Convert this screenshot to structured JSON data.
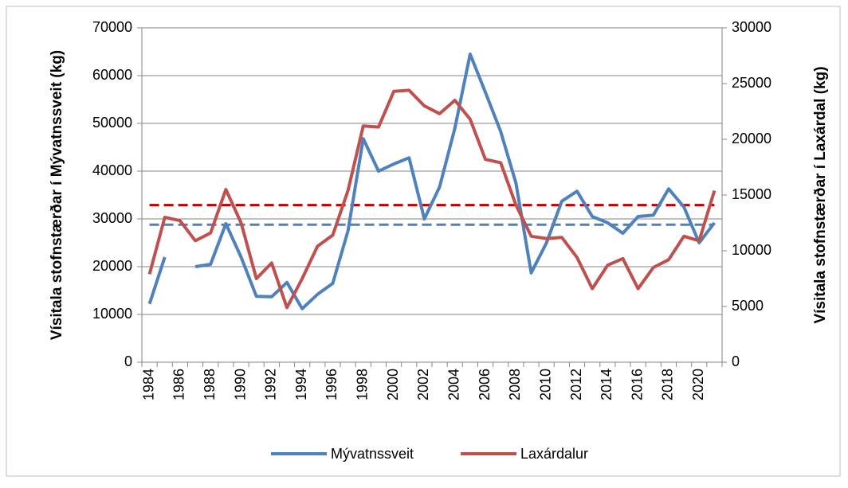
{
  "chart_data": {
    "type": "line",
    "y_label": "Vísitala stofnstærðar í Mývatnssveit (kg)",
    "y2_label": "Vísitala stofnstærðar í Laxárdal (kg)",
    "categories": [
      "1984",
      null,
      "1986",
      null,
      "1988",
      null,
      "1990",
      null,
      "1992",
      null,
      "1994",
      null,
      "1996",
      null,
      "1998",
      null,
      "2000",
      null,
      "2002",
      null,
      "2004",
      null,
      "2006",
      null,
      "2008",
      null,
      "2010",
      null,
      "2012",
      null,
      "2014",
      null,
      "2016",
      null,
      "2018",
      null,
      "2020",
      null
    ],
    "series": [
      {
        "name": "Mývatnssveit",
        "color": "#4f81bd",
        "axis": "y",
        "values": [
          12200,
          22000,
          null,
          20000,
          20500,
          29000,
          22000,
          13800,
          13700,
          16700,
          11200,
          14200,
          16500,
          27500,
          46800,
          40000,
          41500,
          42800,
          30000,
          36700,
          49000,
          64500,
          56500,
          48300,
          37500,
          18700,
          25000,
          33700,
          35800,
          30500,
          29200,
          27000,
          30500,
          30800,
          36300,
          32500,
          25000,
          29200
        ]
      },
      {
        "name": "Laxárdalur",
        "color": "#c0504d",
        "axis": "y2",
        "values": [
          7900,
          13000,
          12700,
          10900,
          11600,
          15500,
          12500,
          7500,
          8900,
          4900,
          7500,
          10400,
          11400,
          15400,
          21200,
          21100,
          24300,
          24400,
          23000,
          22300,
          23500,
          21800,
          18200,
          17900,
          14100,
          11300,
          11100,
          11200,
          9400,
          6600,
          8700,
          9300,
          6600,
          8500,
          9200,
          11300,
          10900,
          15400
        ]
      }
    ],
    "mean_lines": [
      {
        "axis": "y",
        "value": 28800,
        "color": "#4f81bd"
      },
      {
        "axis": "y2",
        "value": 14100,
        "color": "#c00000"
      }
    ],
    "ylim": [
      0,
      70000
    ],
    "yticks": [
      0,
      10000,
      20000,
      30000,
      40000,
      50000,
      60000,
      70000
    ],
    "y2lim": [
      0,
      30000
    ],
    "y2ticks": [
      0,
      5000,
      10000,
      15000,
      20000,
      25000,
      30000
    ],
    "grid": true,
    "legend": "bottom"
  }
}
